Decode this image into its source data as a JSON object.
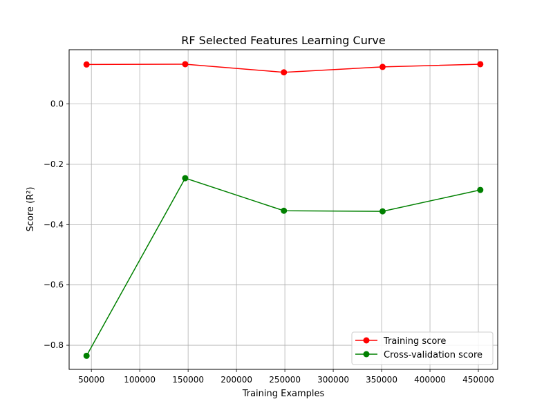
{
  "chart_data": {
    "type": "line",
    "title": "RF Selected Features Learning Curve",
    "xlabel": "Training Examples",
    "ylabel": "Score (R²)",
    "x": [
      45000,
      147000,
      249000,
      351000,
      452000
    ],
    "xlim": [
      27000,
      470000
    ],
    "ylim": [
      -0.88,
      0.18
    ],
    "xticks": [
      50000,
      100000,
      150000,
      200000,
      250000,
      300000,
      350000,
      400000,
      450000
    ],
    "xtick_labels": [
      "50000",
      "100000",
      "150000",
      "200000",
      "250000",
      "300000",
      "350000",
      "400000",
      "450000"
    ],
    "yticks": [
      0.0,
      -0.2,
      -0.4,
      -0.6,
      -0.8
    ],
    "ytick_labels": [
      "0.0",
      "−0.2",
      "−0.4",
      "−0.6",
      "−0.8"
    ],
    "grid": true,
    "legend_position": "lower-right",
    "series": [
      {
        "name": "Training score",
        "color": "#ff0000",
        "values": [
          0.131,
          0.132,
          0.105,
          0.123,
          0.132
        ]
      },
      {
        "name": "Cross-validation score",
        "color": "#008000",
        "values": [
          -0.835,
          -0.246,
          -0.354,
          -0.356,
          -0.285
        ]
      }
    ]
  }
}
